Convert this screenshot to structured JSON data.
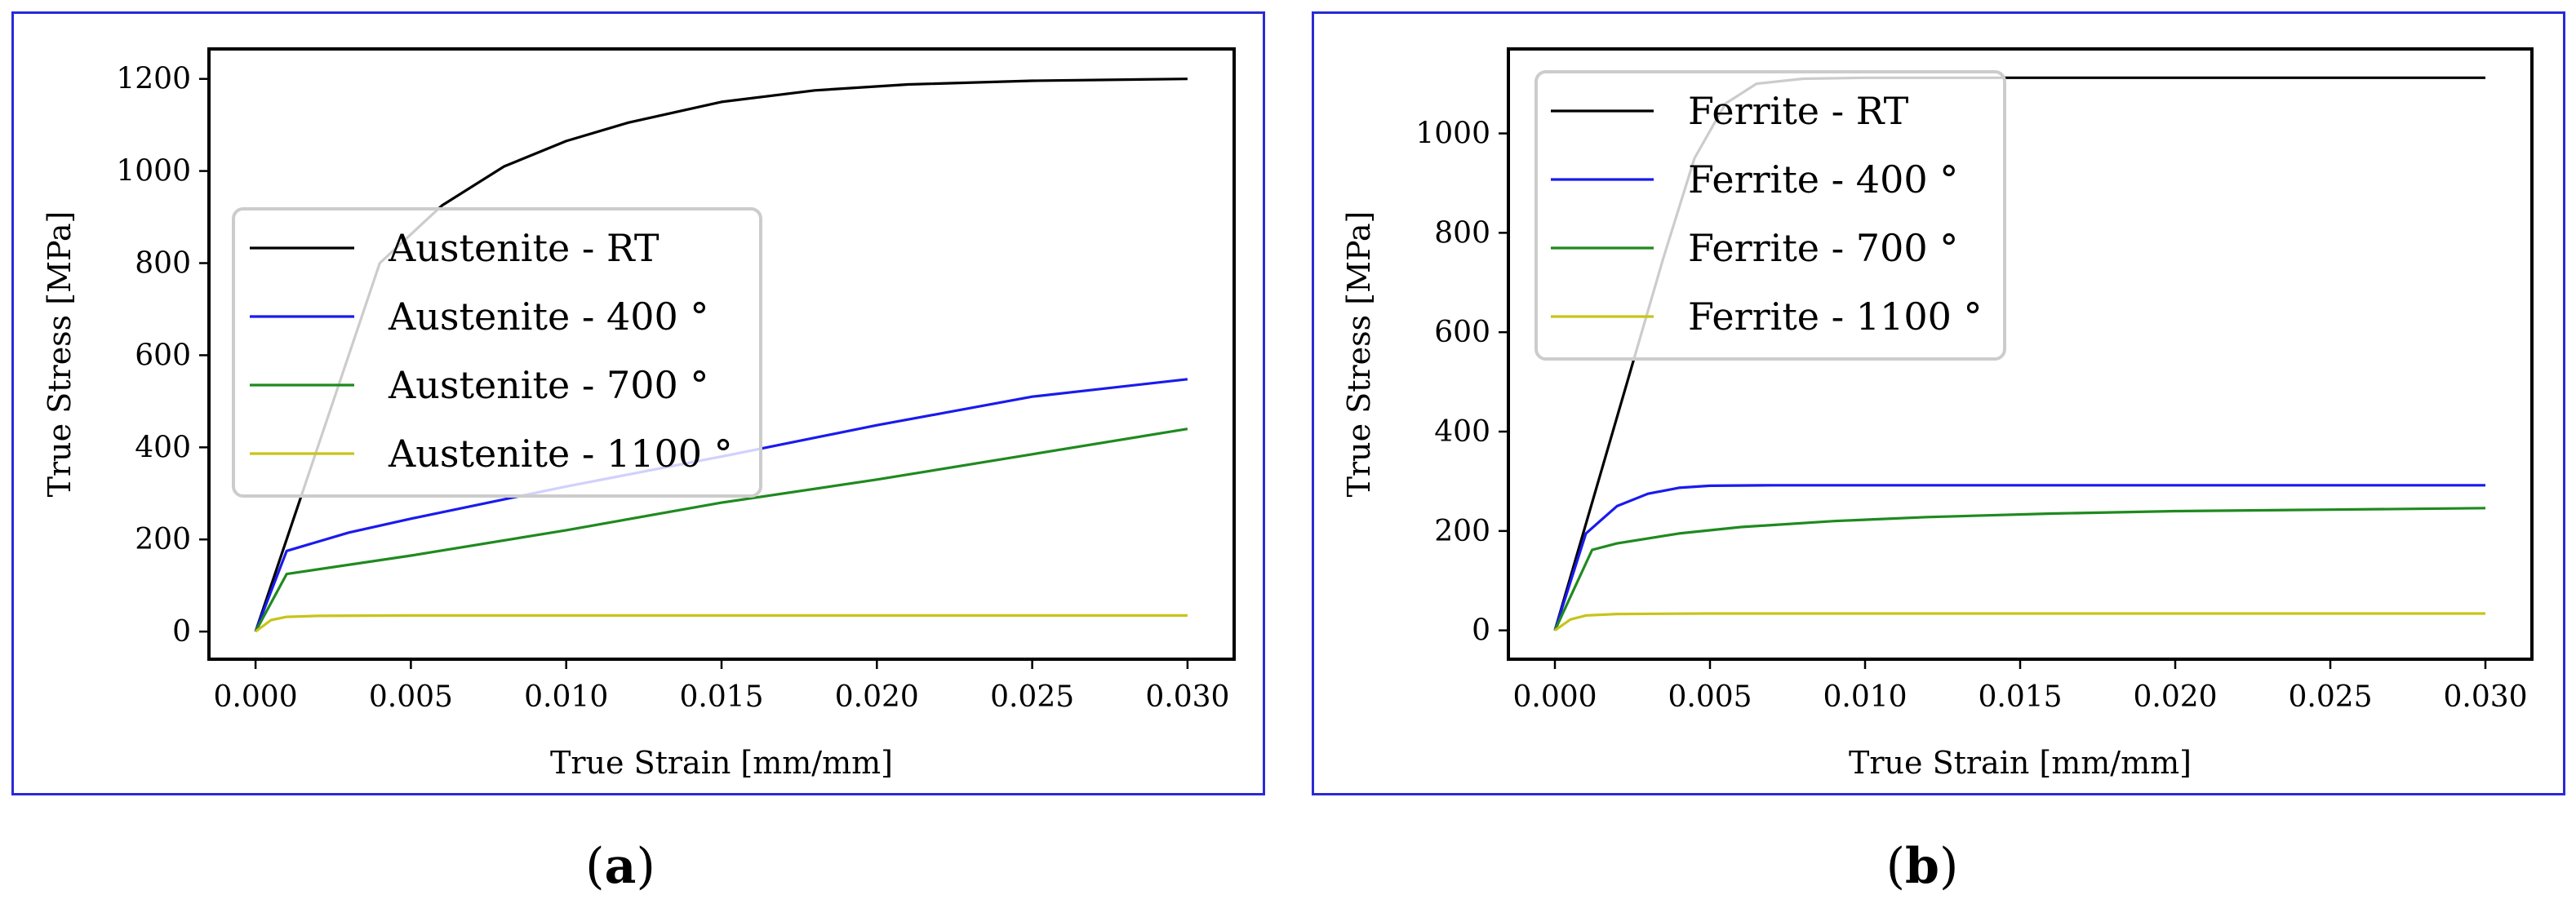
{
  "chart_data": [
    {
      "id": "a",
      "type": "line",
      "caption": "(a)",
      "caption_parts": [
        "(",
        "a",
        ")"
      ],
      "xlabel": "True Strain [mm/mm]",
      "ylabel": "True Stress [MPa]",
      "xlim": [
        -0.0015,
        0.0315
      ],
      "ylim": [
        -60,
        1265
      ],
      "xticks": [
        0.0,
        0.005,
        0.01,
        0.015,
        0.02,
        0.025,
        0.03
      ],
      "xtick_labels": [
        "0.000",
        "0.005",
        "0.010",
        "0.015",
        "0.020",
        "0.025",
        "0.030"
      ],
      "yticks": [
        0,
        200,
        400,
        600,
        800,
        1000,
        1200
      ],
      "ytick_labels": [
        "0",
        "200",
        "400",
        "600",
        "800",
        "1000",
        "1200"
      ],
      "legend_position": "center-left",
      "series": [
        {
          "name": "Austenite - RT",
          "color": "#000000",
          "x": [
            0,
            0.004,
            0.006,
            0.008,
            0.01,
            0.012,
            0.015,
            0.018,
            0.021,
            0.025,
            0.03
          ],
          "y": [
            0,
            800,
            925,
            1010,
            1065,
            1105,
            1150,
            1175,
            1188,
            1196,
            1200
          ]
        },
        {
          "name": "Austenite - 400 °",
          "color": "#1a1aee",
          "x": [
            0,
            0.001,
            0.003,
            0.005,
            0.01,
            0.015,
            0.02,
            0.025,
            0.03
          ],
          "y": [
            0,
            175,
            215,
            245,
            315,
            380,
            448,
            510,
            548
          ]
        },
        {
          "name": "Austenite - 700 °",
          "color": "#1f8a1f",
          "x": [
            0,
            0.001,
            0.005,
            0.01,
            0.015,
            0.02,
            0.025,
            0.03
          ],
          "y": [
            0,
            125,
            165,
            220,
            280,
            330,
            385,
            440
          ]
        },
        {
          "name": "Austenite - 1100 °",
          "color": "#c8c41a",
          "x": [
            0,
            0.0005,
            0.001,
            0.002,
            0.005,
            0.01,
            0.02,
            0.03
          ],
          "y": [
            0,
            25,
            32,
            34,
            35,
            35,
            35,
            35
          ]
        }
      ]
    },
    {
      "id": "b",
      "type": "line",
      "caption": "(b)",
      "caption_parts": [
        "(",
        "b",
        ")"
      ],
      "xlabel": "True Strain [mm/mm]",
      "ylabel": "True Stress [MPa]",
      "xlim": [
        -0.0015,
        0.0315
      ],
      "ylim": [
        -58,
        1170
      ],
      "xticks": [
        0.0,
        0.005,
        0.01,
        0.015,
        0.02,
        0.025,
        0.03
      ],
      "xtick_labels": [
        "0.000",
        "0.005",
        "0.010",
        "0.015",
        "0.020",
        "0.025",
        "0.030"
      ],
      "yticks": [
        0,
        200,
        400,
        600,
        800,
        1000
      ],
      "ytick_labels": [
        "0",
        "200",
        "400",
        "600",
        "800",
        "1000"
      ],
      "legend_position": "top-left",
      "series": [
        {
          "name": "Ferrite - RT",
          "color": "#000000",
          "x": [
            0,
            0.0035,
            0.0045,
            0.0055,
            0.0065,
            0.008,
            0.01,
            0.015,
            0.02,
            0.03
          ],
          "y": [
            0,
            750,
            950,
            1060,
            1100,
            1110,
            1112,
            1112,
            1112,
            1112
          ]
        },
        {
          "name": "Ferrite - 400 °",
          "color": "#1a1aee",
          "x": [
            0,
            0.001,
            0.002,
            0.003,
            0.004,
            0.005,
            0.007,
            0.01,
            0.02,
            0.03
          ],
          "y": [
            0,
            195,
            250,
            275,
            287,
            291,
            292,
            292,
            292,
            292
          ]
        },
        {
          "name": "Ferrite - 700 °",
          "color": "#1f8a1f",
          "x": [
            0,
            0.0012,
            0.002,
            0.004,
            0.006,
            0.009,
            0.012,
            0.016,
            0.02,
            0.025,
            0.03
          ],
          "y": [
            0,
            162,
            175,
            195,
            208,
            220,
            228,
            235,
            240,
            243,
            246
          ]
        },
        {
          "name": "Ferrite - 1100 °",
          "color": "#c8c41a",
          "x": [
            0,
            0.0005,
            0.001,
            0.002,
            0.005,
            0.01,
            0.02,
            0.03
          ],
          "y": [
            0,
            22,
            30,
            33,
            34,
            34,
            34,
            34
          ]
        }
      ]
    }
  ]
}
